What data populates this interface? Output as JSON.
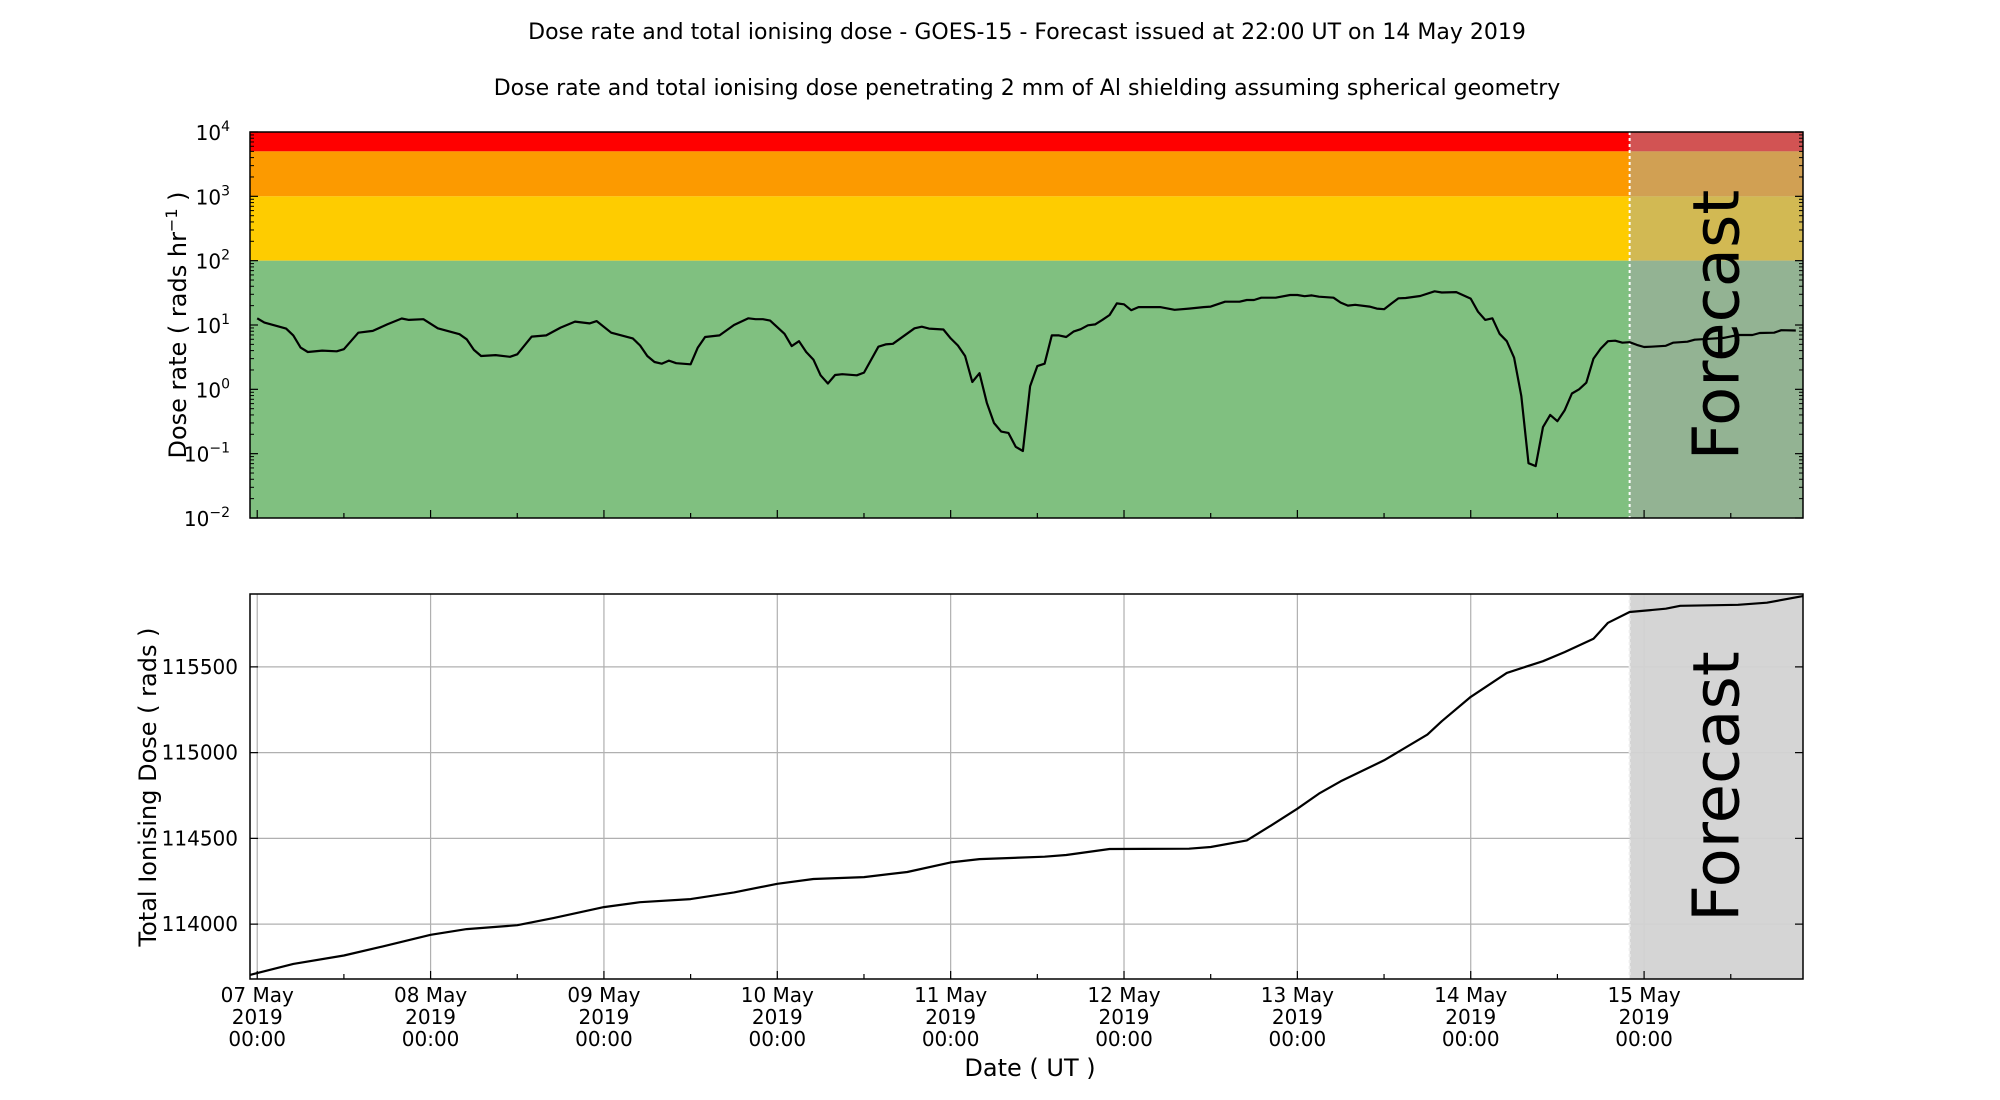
{
  "title": "Dose rate and total ionising dose - GOES-15 - Forecast issued at 22:00 UT on 14 May 2019",
  "subtitle": "Dose rate and total ionising dose penetrating 2 mm of Al shielding assuming spherical geometry",
  "forecast_label": "Forecast",
  "colors": {
    "band_red": "#ff0000",
    "band_orange": "#fc9a00",
    "band_yellow": "#fecc00",
    "band_green": "#80c080",
    "forecast_overlay": "rgba(166,166,166,0.5)",
    "forecast_region_bottom": "#d3d3d3",
    "line": "#000000"
  },
  "chart_data": [
    {
      "type": "line",
      "yscale": "log",
      "ylabel_main": "Dose rate ( rads hr",
      "ylabel_sup": "−1",
      "ylabel_end": " )",
      "xlim": [
        "2019-05-06 23:00",
        "2019-05-15 22:00"
      ],
      "ylim": [
        0.01,
        10000
      ],
      "yticks": [
        {
          "value": 0.01,
          "base": "10",
          "exp": "−2"
        },
        {
          "value": 0.1,
          "base": "10",
          "exp": "−1"
        },
        {
          "value": 1,
          "base": "10",
          "exp": "0"
        },
        {
          "value": 10,
          "base": "10",
          "exp": "1"
        },
        {
          "value": 100,
          "base": "10",
          "exp": "2"
        },
        {
          "value": 1000,
          "base": "10",
          "exp": "3"
        },
        {
          "value": 10000,
          "base": "10",
          "exp": "4"
        }
      ],
      "bands": [
        {
          "from": 5000,
          "to": 10000,
          "color": "#ff0000"
        },
        {
          "from": 1000,
          "to": 5000,
          "color": "#fc9a00"
        },
        {
          "from": 100,
          "to": 1000,
          "color": "#fecc00"
        },
        {
          "from": 0.01,
          "to": 100,
          "color": "#80c080"
        }
      ],
      "forecast_start": "2019-05-14 22:00",
      "grid": false,
      "points": [
        [
          "2019-05-07 00:00",
          12.7
        ],
        [
          "2019-05-07 01:00",
          10.9
        ],
        [
          "2019-05-07 04:00",
          8.8
        ],
        [
          "2019-05-07 05:00",
          6.9
        ],
        [
          "2019-05-07 06:00",
          4.45
        ],
        [
          "2019-05-07 07:00",
          3.8
        ],
        [
          "2019-05-07 09:00",
          4.0
        ],
        [
          "2019-05-07 11:00",
          3.9
        ],
        [
          "2019-05-07 12:00",
          4.2
        ],
        [
          "2019-05-07 14:00",
          7.6
        ],
        [
          "2019-05-07 16:00",
          8.1
        ],
        [
          "2019-05-07 18:00",
          10.2
        ],
        [
          "2019-05-07 20:00",
          12.6
        ],
        [
          "2019-05-07 21:00",
          12.0
        ],
        [
          "2019-05-07 23:00",
          12.3
        ],
        [
          "2019-05-08 01:00",
          8.9
        ],
        [
          "2019-05-08 04:00",
          7.2
        ],
        [
          "2019-05-08 05:00",
          6.0
        ],
        [
          "2019-05-08 06:00",
          4.1
        ],
        [
          "2019-05-08 07:00",
          3.3
        ],
        [
          "2019-05-08 09:00",
          3.4
        ],
        [
          "2019-05-08 11:00",
          3.2
        ],
        [
          "2019-05-08 12:00",
          3.5
        ],
        [
          "2019-05-08 14:00",
          6.6
        ],
        [
          "2019-05-08 16:00",
          6.9
        ],
        [
          "2019-05-08 18:00",
          9.1
        ],
        [
          "2019-05-08 20:00",
          11.3
        ],
        [
          "2019-05-08 22:00",
          10.6
        ],
        [
          "2019-05-08 23:00",
          11.5
        ],
        [
          "2019-05-09 01:00",
          7.6
        ],
        [
          "2019-05-09 04:00",
          6.2
        ],
        [
          "2019-05-09 05:00",
          4.8
        ],
        [
          "2019-05-09 06:00",
          3.3
        ],
        [
          "2019-05-09 07:00",
          2.66
        ],
        [
          "2019-05-09 08:00",
          2.5
        ],
        [
          "2019-05-09 09:00",
          2.8
        ],
        [
          "2019-05-09 10:00",
          2.55
        ],
        [
          "2019-05-09 12:00",
          2.45
        ],
        [
          "2019-05-09 13:00",
          4.45
        ],
        [
          "2019-05-09 14:00",
          6.5
        ],
        [
          "2019-05-09 16:00",
          6.9
        ],
        [
          "2019-05-09 18:00",
          10.0
        ],
        [
          "2019-05-09 20:00",
          12.7
        ],
        [
          "2019-05-09 21:00",
          12.3
        ],
        [
          "2019-05-09 22:00",
          12.3
        ],
        [
          "2019-05-09 23:00",
          11.7
        ],
        [
          "2019-05-10 01:00",
          7.3
        ],
        [
          "2019-05-10 02:00",
          4.7
        ],
        [
          "2019-05-10 03:00",
          5.6
        ],
        [
          "2019-05-10 04:00",
          3.8
        ],
        [
          "2019-05-10 05:00",
          2.9
        ],
        [
          "2019-05-10 06:00",
          1.65
        ],
        [
          "2019-05-10 07:00",
          1.23
        ],
        [
          "2019-05-10 08:00",
          1.67
        ],
        [
          "2019-05-10 09:00",
          1.72
        ],
        [
          "2019-05-10 11:00",
          1.65
        ],
        [
          "2019-05-10 12:00",
          1.82
        ],
        [
          "2019-05-10 14:00",
          4.6
        ],
        [
          "2019-05-10 15:00",
          5.0
        ],
        [
          "2019-05-10 16:00",
          5.1
        ],
        [
          "2019-05-10 19:00",
          8.9
        ],
        [
          "2019-05-10 20:00",
          9.4
        ],
        [
          "2019-05-10 21:00",
          8.8
        ],
        [
          "2019-05-10 23:00",
          8.5
        ],
        [
          "2019-05-11 00:00",
          6.2
        ],
        [
          "2019-05-11 01:00",
          4.8
        ],
        [
          "2019-05-11 02:00",
          3.3
        ],
        [
          "2019-05-11 03:00",
          1.3
        ],
        [
          "2019-05-11 04:00",
          1.78
        ],
        [
          "2019-05-11 05:00",
          0.62
        ],
        [
          "2019-05-11 06:00",
          0.3
        ],
        [
          "2019-05-11 07:00",
          0.22
        ],
        [
          "2019-05-11 08:00",
          0.21
        ],
        [
          "2019-05-11 09:00",
          0.128
        ],
        [
          "2019-05-11 10:00",
          0.11
        ],
        [
          "2019-05-11 11:00",
          1.12
        ],
        [
          "2019-05-11 12:00",
          2.3
        ],
        [
          "2019-05-11 13:00",
          2.5
        ],
        [
          "2019-05-11 14:00",
          6.9
        ],
        [
          "2019-05-11 15:00",
          6.9
        ],
        [
          "2019-05-11 16:00",
          6.5
        ],
        [
          "2019-05-11 17:00",
          7.9
        ],
        [
          "2019-05-11 18:00",
          8.6
        ],
        [
          "2019-05-11 19:00",
          9.9
        ],
        [
          "2019-05-11 20:00",
          10.2
        ],
        [
          "2019-05-11 21:00",
          12.0
        ],
        [
          "2019-05-11 22:00",
          14.3
        ],
        [
          "2019-05-11 23:00",
          21.7
        ],
        [
          "2019-05-12 00:00",
          21
        ],
        [
          "2019-05-12 01:00",
          17
        ],
        [
          "2019-05-12 02:00",
          19
        ],
        [
          "2019-05-12 05:00",
          19
        ],
        [
          "2019-05-12 07:00",
          17.2
        ],
        [
          "2019-05-12 09:00",
          18
        ],
        [
          "2019-05-12 11:00",
          19
        ],
        [
          "2019-05-12 12:00",
          19.3
        ],
        [
          "2019-05-12 14:00",
          23
        ],
        [
          "2019-05-12 16:00",
          23
        ],
        [
          "2019-05-12 17:00",
          24.5
        ],
        [
          "2019-05-12 18:00",
          24.5
        ],
        [
          "2019-05-12 19:00",
          26.6
        ],
        [
          "2019-05-12 21:00",
          26.6
        ],
        [
          "2019-05-12 23:00",
          29.3
        ],
        [
          "2019-05-13 00:00",
          29.3
        ],
        [
          "2019-05-13 01:00",
          28
        ],
        [
          "2019-05-13 02:00",
          28.8
        ],
        [
          "2019-05-13 03:00",
          27.5
        ],
        [
          "2019-05-13 05:00",
          26.6
        ],
        [
          "2019-05-13 06:00",
          22.3
        ],
        [
          "2019-05-13 07:00",
          20
        ],
        [
          "2019-05-13 08:00",
          20.6
        ],
        [
          "2019-05-13 10:00",
          19.3
        ],
        [
          "2019-05-13 11:00",
          18
        ],
        [
          "2019-05-13 12:00",
          17.6
        ],
        [
          "2019-05-13 13:00",
          21.5
        ],
        [
          "2019-05-13 14:00",
          26
        ],
        [
          "2019-05-13 15:00",
          26.3
        ],
        [
          "2019-05-13 17:00",
          28.2
        ],
        [
          "2019-05-13 19:00",
          33.4
        ],
        [
          "2019-05-13 20:00",
          32
        ],
        [
          "2019-05-13 22:00",
          32.5
        ],
        [
          "2019-05-14 00:00",
          25.7
        ],
        [
          "2019-05-14 01:00",
          16.1
        ],
        [
          "2019-05-14 02:00",
          12
        ],
        [
          "2019-05-14 03:00",
          12.7
        ],
        [
          "2019-05-14 04:00",
          7.3
        ],
        [
          "2019-05-14 05:00",
          5.6
        ],
        [
          "2019-05-14 06:00",
          3.1
        ],
        [
          "2019-05-14 07:00",
          0.79
        ],
        [
          "2019-05-14 08:00",
          0.071
        ],
        [
          "2019-05-14 09:00",
          0.064
        ],
        [
          "2019-05-14 10:00",
          0.26
        ],
        [
          "2019-05-14 11:00",
          0.4
        ],
        [
          "2019-05-14 12:00",
          0.32
        ],
        [
          "2019-05-14 13:00",
          0.47
        ],
        [
          "2019-05-14 14:00",
          0.86
        ],
        [
          "2019-05-14 15:00",
          1.0
        ],
        [
          "2019-05-14 16:00",
          1.27
        ],
        [
          "2019-05-14 17:00",
          3.0
        ],
        [
          "2019-05-14 18:00",
          4.3
        ],
        [
          "2019-05-14 19:00",
          5.6
        ],
        [
          "2019-05-14 20:00",
          5.7
        ],
        [
          "2019-05-14 21:00",
          5.3
        ],
        [
          "2019-05-14 22:00",
          5.4
        ],
        [
          "2019-05-14 23:00",
          4.9
        ],
        [
          "2019-05-15 00:00",
          4.55
        ],
        [
          "2019-05-15 01:00",
          4.6
        ],
        [
          "2019-05-15 03:00",
          4.75
        ],
        [
          "2019-05-15 04:00",
          5.3
        ],
        [
          "2019-05-15 06:00",
          5.5
        ],
        [
          "2019-05-15 07:00",
          5.9
        ],
        [
          "2019-05-15 09:00",
          6.1
        ],
        [
          "2019-05-15 11:00",
          6.3
        ],
        [
          "2019-05-15 13:00",
          7.0
        ],
        [
          "2019-05-15 15:00",
          7.0
        ],
        [
          "2019-05-15 16:00",
          7.5
        ],
        [
          "2019-05-15 18:00",
          7.6
        ],
        [
          "2019-05-15 19:00",
          8.3
        ],
        [
          "2019-05-15 21:00",
          8.2
        ]
      ]
    },
    {
      "type": "line",
      "yscale": "linear",
      "ylabel": "Total Ionising Dose ( rads )",
      "xlabel": "Date ( UT )",
      "xlim": [
        "2019-05-06 23:00",
        "2019-05-15 22:00"
      ],
      "ylim": [
        113680,
        115925
      ],
      "yticks": [
        "114000",
        "114500",
        "115000",
        "115500"
      ],
      "xticks": [
        {
          "time": "2019-05-07 00:00",
          "l1": "07 May",
          "l2": "2019",
          "l3": "00:00"
        },
        {
          "time": "2019-05-08 00:00",
          "l1": "08 May",
          "l2": "2019",
          "l3": "00:00"
        },
        {
          "time": "2019-05-09 00:00",
          "l1": "09 May",
          "l2": "2019",
          "l3": "00:00"
        },
        {
          "time": "2019-05-10 00:00",
          "l1": "10 May",
          "l2": "2019",
          "l3": "00:00"
        },
        {
          "time": "2019-05-11 00:00",
          "l1": "11 May",
          "l2": "2019",
          "l3": "00:00"
        },
        {
          "time": "2019-05-12 00:00",
          "l1": "12 May",
          "l2": "2019",
          "l3": "00:00"
        },
        {
          "time": "2019-05-13 00:00",
          "l1": "13 May",
          "l2": "2019",
          "l3": "00:00"
        },
        {
          "time": "2019-05-14 00:00",
          "l1": "14 May",
          "l2": "2019",
          "l3": "00:00"
        },
        {
          "time": "2019-05-15 00:00",
          "l1": "15 May",
          "l2": "2019",
          "l3": "00:00"
        }
      ],
      "forecast_start": "2019-05-14 22:00",
      "grid": true,
      "points": [
        [
          "2019-05-06 23:00",
          113704
        ],
        [
          "2019-05-07 05:00",
          113768
        ],
        [
          "2019-05-07 12:00",
          113817
        ],
        [
          "2019-05-07 17:00",
          113866
        ],
        [
          "2019-05-08 00:00",
          113938
        ],
        [
          "2019-05-08 05:00",
          113971
        ],
        [
          "2019-05-08 12:00",
          113994
        ],
        [
          "2019-05-08 17:00",
          114035
        ],
        [
          "2019-05-09 00:00",
          114099
        ],
        [
          "2019-05-09 05:00",
          114128
        ],
        [
          "2019-05-09 12:00",
          114146
        ],
        [
          "2019-05-09 18:00",
          114185
        ],
        [
          "2019-05-10 00:00",
          114235
        ],
        [
          "2019-05-10 05:00",
          114263
        ],
        [
          "2019-05-10 12:00",
          114274
        ],
        [
          "2019-05-10 18:00",
          114304
        ],
        [
          "2019-05-11 00:00",
          114360
        ],
        [
          "2019-05-11 04:00",
          114379
        ],
        [
          "2019-05-11 13:00",
          114393
        ],
        [
          "2019-05-11 16:00",
          114403
        ],
        [
          "2019-05-11 22:00",
          114438
        ],
        [
          "2019-05-12 09:00",
          114440
        ],
        [
          "2019-05-12 12:00",
          114450
        ],
        [
          "2019-05-12 17:00",
          114488
        ],
        [
          "2019-05-12 20:00",
          114566
        ],
        [
          "2019-05-13 00:00",
          114673
        ],
        [
          "2019-05-13 03:00",
          114761
        ],
        [
          "2019-05-13 06:00",
          114833
        ],
        [
          "2019-05-13 12:00",
          114955
        ],
        [
          "2019-05-13 18:00",
          115105
        ],
        [
          "2019-05-13 20:00",
          115183
        ],
        [
          "2019-05-14 00:00",
          115325
        ],
        [
          "2019-05-14 05:00",
          115465
        ],
        [
          "2019-05-14 10:00",
          115533
        ],
        [
          "2019-05-14 13:00",
          115586
        ],
        [
          "2019-05-14 17:00",
          115664
        ],
        [
          "2019-05-14 19:00",
          115757
        ],
        [
          "2019-05-14 22:00",
          115820
        ],
        [
          "2019-05-15 03:00",
          115839
        ],
        [
          "2019-05-15 05:00",
          115856
        ],
        [
          "2019-05-15 13:00",
          115862
        ],
        [
          "2019-05-15 17:00",
          115874
        ],
        [
          "2019-05-15 22:00",
          115913
        ]
      ]
    }
  ]
}
